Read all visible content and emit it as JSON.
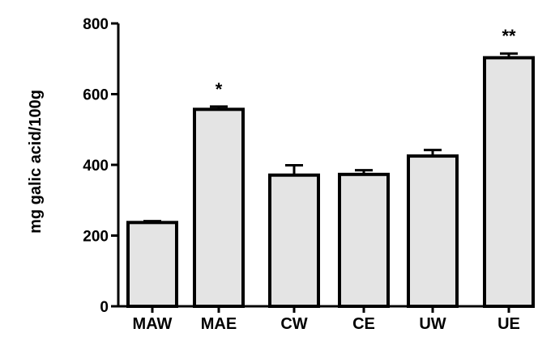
{
  "chart_data": {
    "type": "bar",
    "title": "",
    "xlabel": "",
    "ylabel": "mg galic acid/100g",
    "ylim": [
      0,
      800
    ],
    "yticks": [
      0,
      200,
      400,
      600,
      800
    ],
    "categories": [
      "MAW",
      "MAE",
      "CW",
      "CE",
      "UW",
      "UE"
    ],
    "values": [
      237,
      557,
      371,
      373,
      425,
      703
    ],
    "errors": [
      4,
      8,
      28,
      12,
      17,
      12
    ],
    "annotations": [
      "",
      "*",
      "",
      "",
      "",
      "**"
    ],
    "bar_color": "#e4e4e4",
    "grid": false,
    "legend": "none"
  }
}
